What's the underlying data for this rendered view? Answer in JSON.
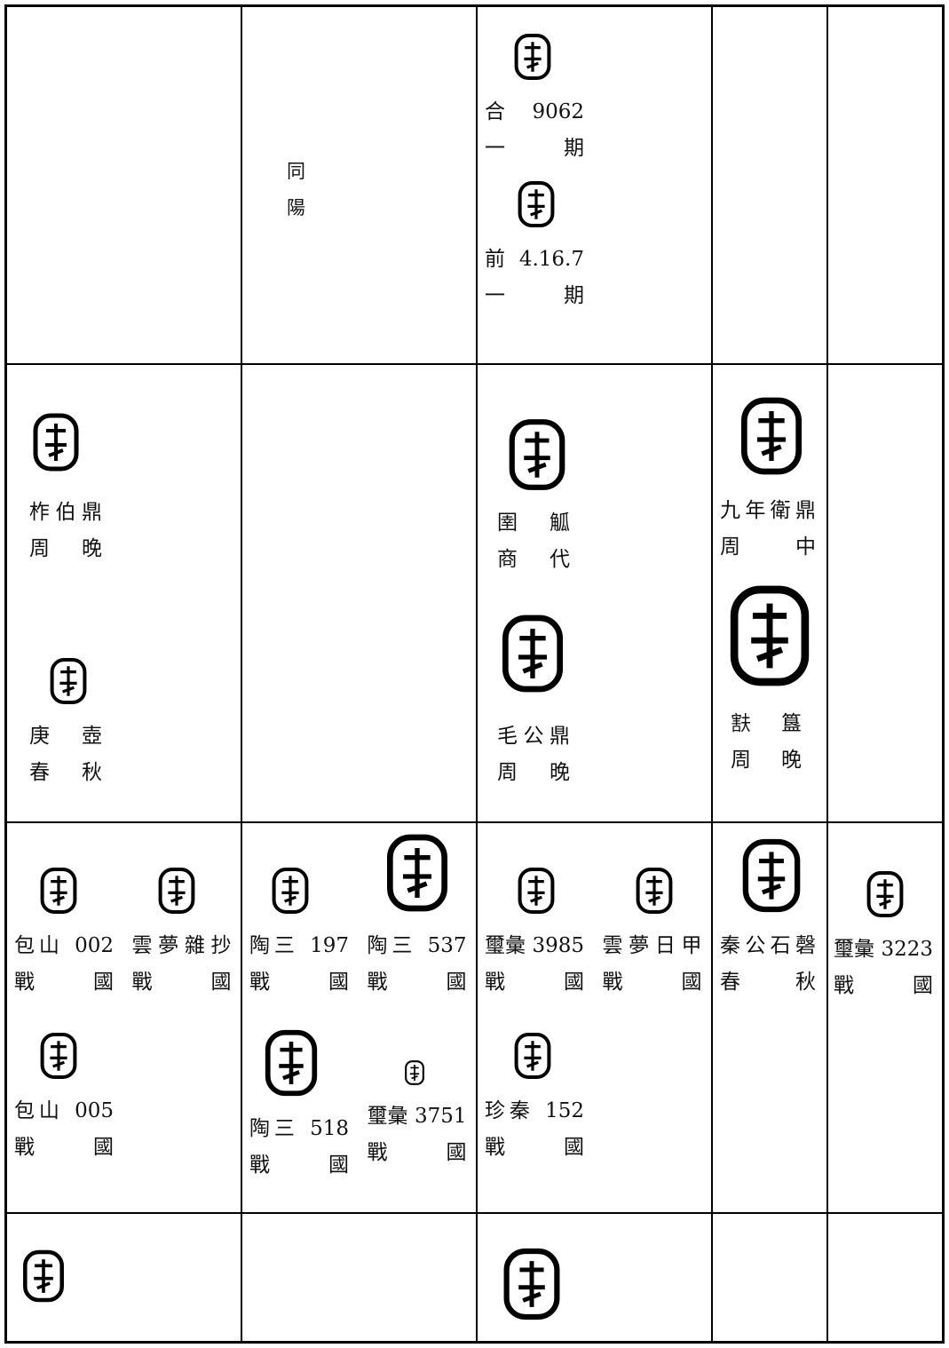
{
  "table": {
    "rows": [
      [
        [],
        [
          [
            "同",
            "陽"
          ]
        ],
        [
          [
            "合 9062",
            "一 期"
          ],
          [
            "前4.16.7",
            "一 期"
          ]
        ],
        [],
        []
      ],
      [
        [
          [
            "柞伯鼎",
            "周 晚"
          ],
          [
            "庚 壺",
            "春 秋"
          ]
        ],
        [],
        [
          [
            "圉 觚",
            "商 代"
          ],
          [
            "毛公鼎",
            "周 晚"
          ]
        ],
        [
          [
            "九年衛鼎",
            "周 中"
          ],
          [
            "㝬 簋",
            "周 晚"
          ]
        ],
        []
      ],
      [
        [
          [
            "包山 002",
            "戰 國"
          ],
          [
            "雲夢雜抄",
            "戰 國"
          ],
          [
            "包山 005",
            "戰 國"
          ]
        ],
        [
          [
            "陶三 197",
            "戰 國"
          ],
          [
            "陶三 537",
            "戰 國"
          ],
          [
            "陶三 518",
            "戰 國"
          ],
          [
            "璽彙 3751",
            "戰 國"
          ]
        ],
        [
          [
            "璽彙 3985",
            "戰 國"
          ],
          [
            "雲夢日甲",
            "戰 國"
          ],
          [
            "珍秦 152",
            "戰 國"
          ]
        ],
        [
          [
            "秦公石磬",
            "春 秋"
          ]
        ],
        [
          [
            "璽彙 3223",
            "戰 國"
          ]
        ]
      ],
      [
        [],
        [],
        [],
        [],
        []
      ]
    ]
  }
}
